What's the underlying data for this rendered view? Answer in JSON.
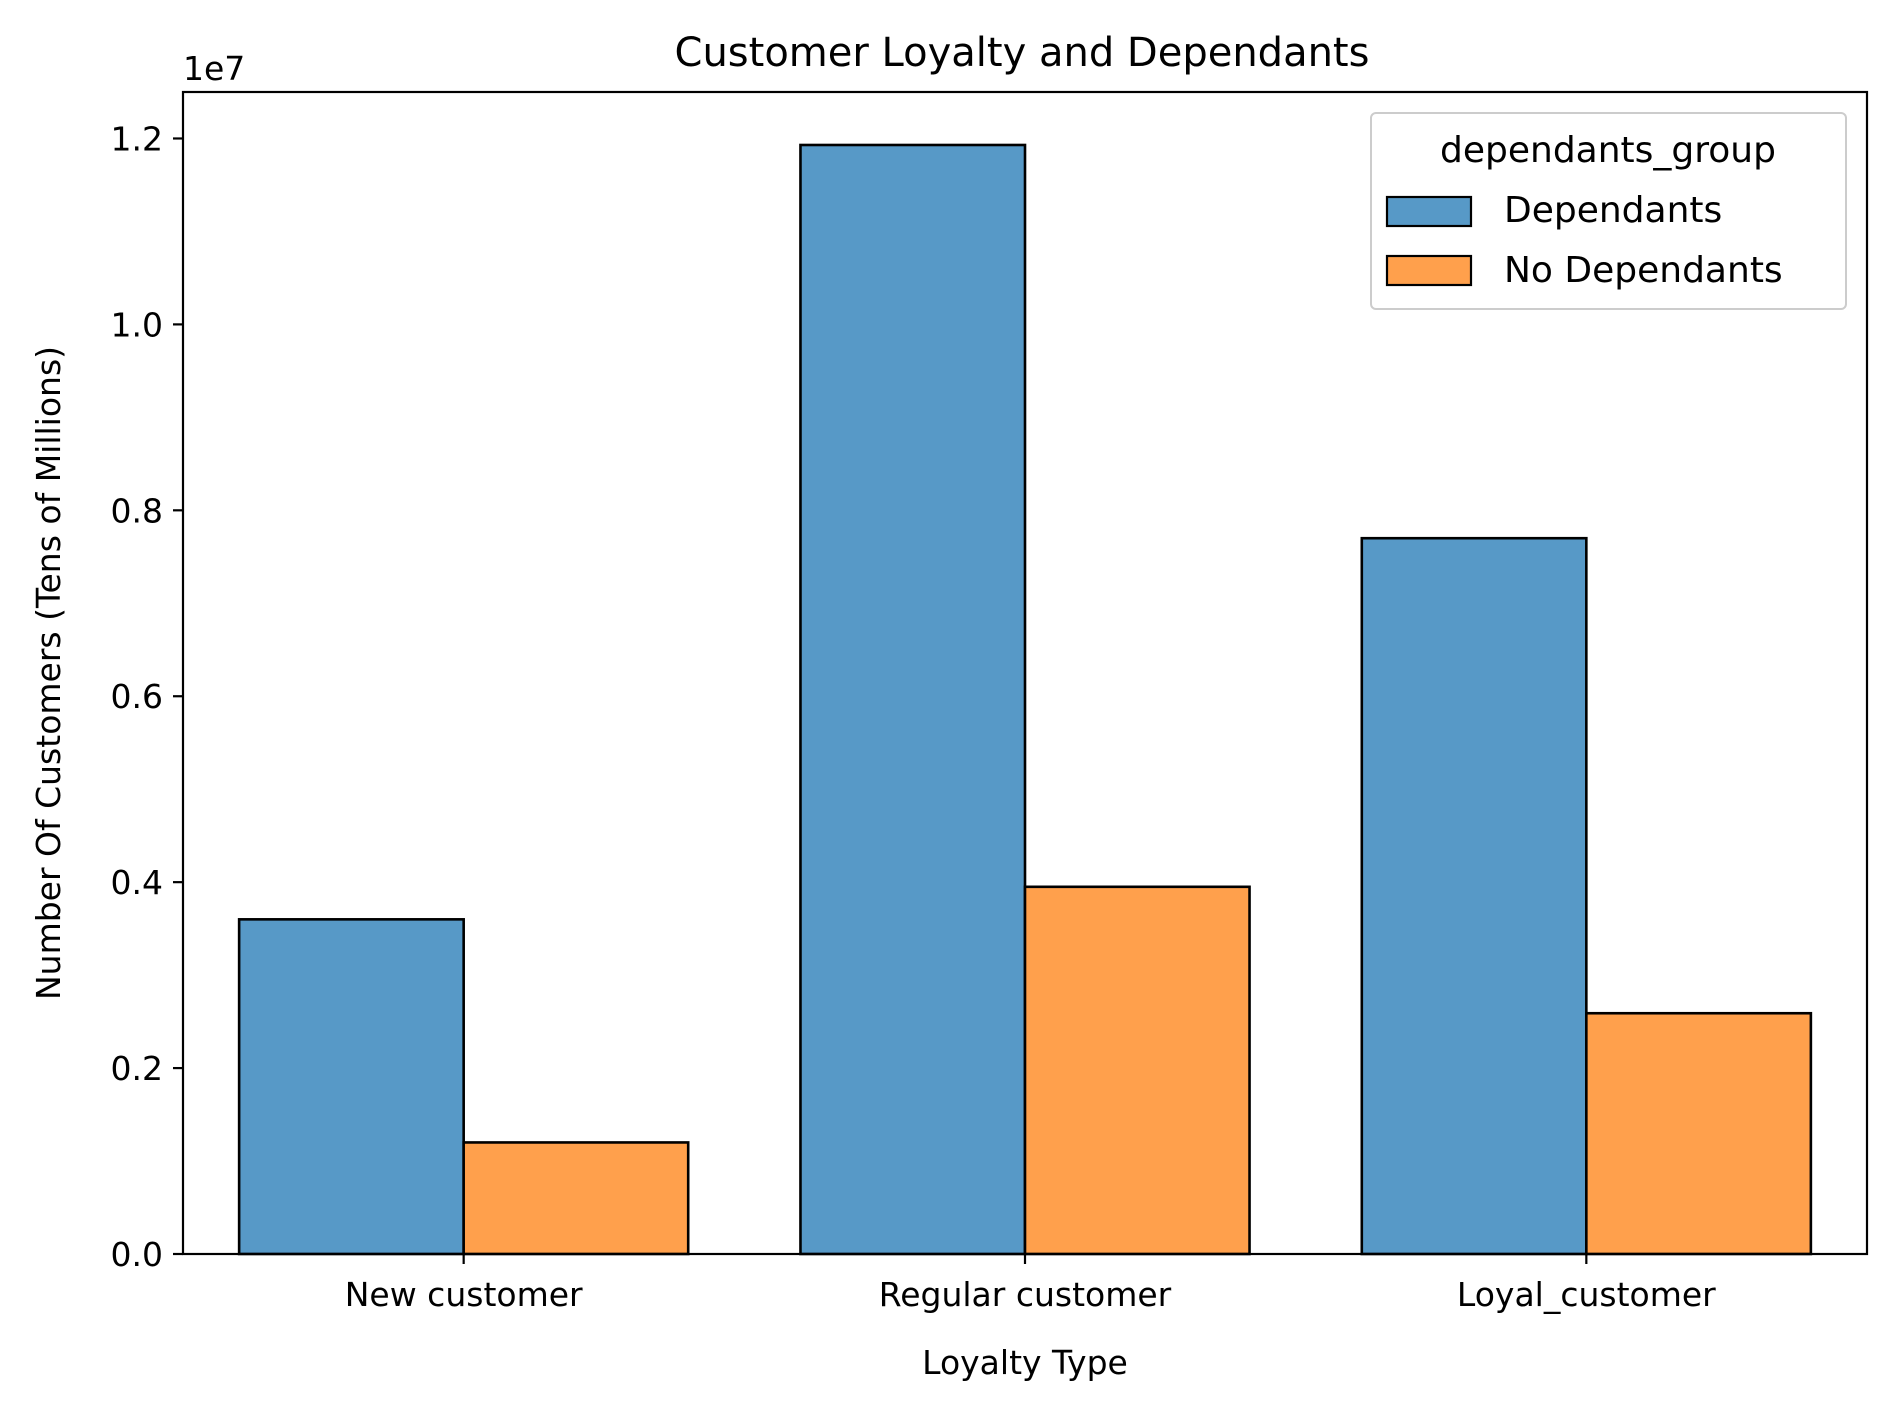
{
  "chart_data": {
    "type": "bar",
    "title": "Customer Loyalty and Dependants",
    "xlabel": "Loyalty Type",
    "ylabel": "Number Of Customers (Tens of Millions)",
    "y_offset_label": "1e7",
    "categories": [
      "New customer",
      "Regular customer",
      "Loyal_customer"
    ],
    "series": [
      {
        "name": "Dependants",
        "color": "#5799c7",
        "values": [
          3600000,
          11930000,
          7700000
        ]
      },
      {
        "name": "No Dependants",
        "color": "#ffa04c",
        "values": [
          1200000,
          3950000,
          2590000
        ]
      }
    ],
    "ylim": [
      0,
      12500000
    ],
    "y_ticks": [
      0,
      2000000,
      4000000,
      6000000,
      8000000,
      10000000,
      12000000
    ],
    "y_tick_labels": [
      "0.0",
      "0.2",
      "0.4",
      "0.6",
      "0.8",
      "1.0",
      "1.2"
    ],
    "legend": {
      "title": "dependants_group",
      "placement": "top-right"
    },
    "grid": false
  }
}
